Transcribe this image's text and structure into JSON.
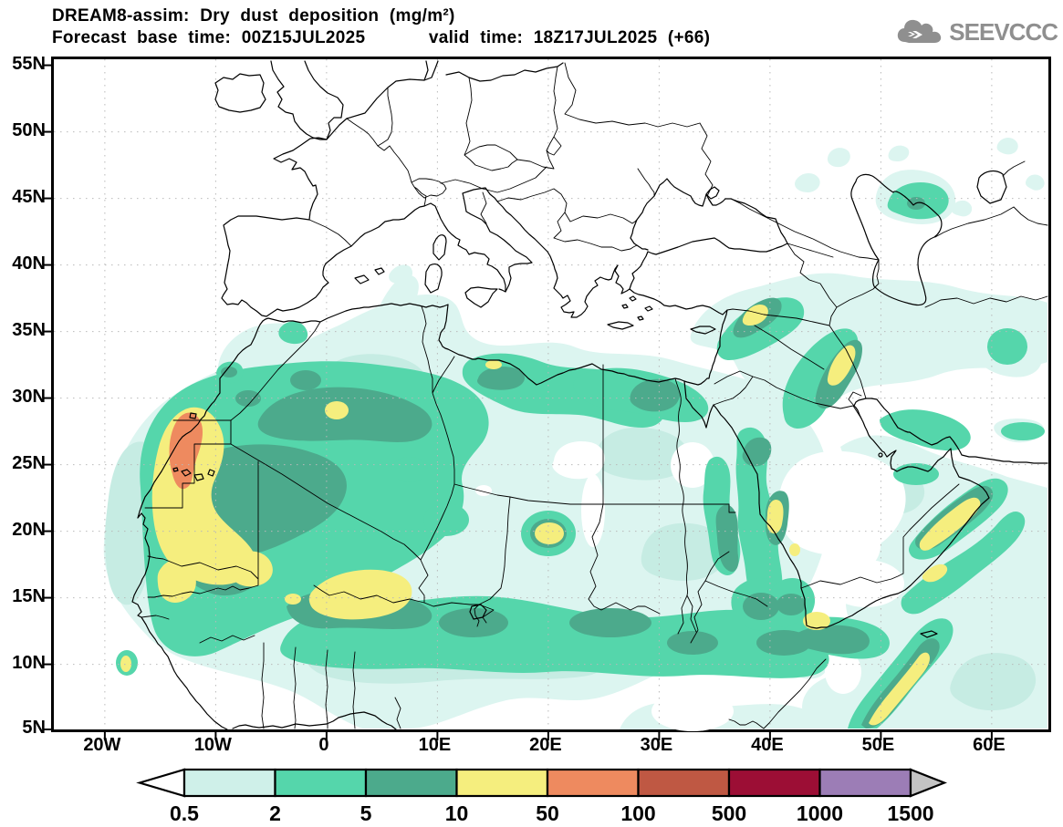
{
  "title": {
    "line1": "DREAM8-assim: Dry dust deposition (mg/m²)",
    "line2": "Forecast base time: 00Z15JUL2025      valid time: 18Z17JUL2025 (+66)"
  },
  "logo": {
    "text": "SEEVCCC",
    "color": "#8f8f8f"
  },
  "map": {
    "lat_ticks": [
      {
        "label": "55N",
        "value": 55
      },
      {
        "label": "50N",
        "value": 50
      },
      {
        "label": "45N",
        "value": 45
      },
      {
        "label": "40N",
        "value": 40
      },
      {
        "label": "35N",
        "value": 35
      },
      {
        "label": "30N",
        "value": 30
      },
      {
        "label": "25N",
        "value": 25
      },
      {
        "label": "20N",
        "value": 20
      },
      {
        "label": "15N",
        "value": 15
      },
      {
        "label": "10N",
        "value": 10
      },
      {
        "label": "5N",
        "value": 5
      }
    ],
    "lon_ticks": [
      {
        "label": "20W",
        "value": -20
      },
      {
        "label": "10W",
        "value": -10
      },
      {
        "label": "0",
        "value": 0
      },
      {
        "label": "10E",
        "value": 10
      },
      {
        "label": "20E",
        "value": 20
      },
      {
        "label": "30E",
        "value": 30
      },
      {
        "label": "40E",
        "value": 40
      },
      {
        "label": "50E",
        "value": 50
      },
      {
        "label": "60E",
        "value": 60
      }
    ]
  },
  "legend": {
    "labels": [
      "0.5",
      "2",
      "5",
      "10",
      "50",
      "100",
      "500",
      "1000",
      "1500"
    ],
    "segment_colors": [
      "#cff0e9",
      "#55d6ab",
      "#4caa8c",
      "#f5ee7e",
      "#ee8a5f",
      "#bf5843",
      "#9c0e35",
      "#9c7db6"
    ],
    "left_arrow_color": "#ffffff",
    "right_arrow_color": "#c4c4c4"
  },
  "dust_levels": {
    "pale1": "#dcf5f0",
    "pale2": "#c6ece3",
    "green": "#55d6ab",
    "dark_green": "#4caa8c",
    "yellow": "#f5ee7e",
    "orange": "#ee8a5f",
    "white_hole": "#ffffff"
  },
  "grid_color": "#b9b9b9",
  "coast_color": "#000000"
}
